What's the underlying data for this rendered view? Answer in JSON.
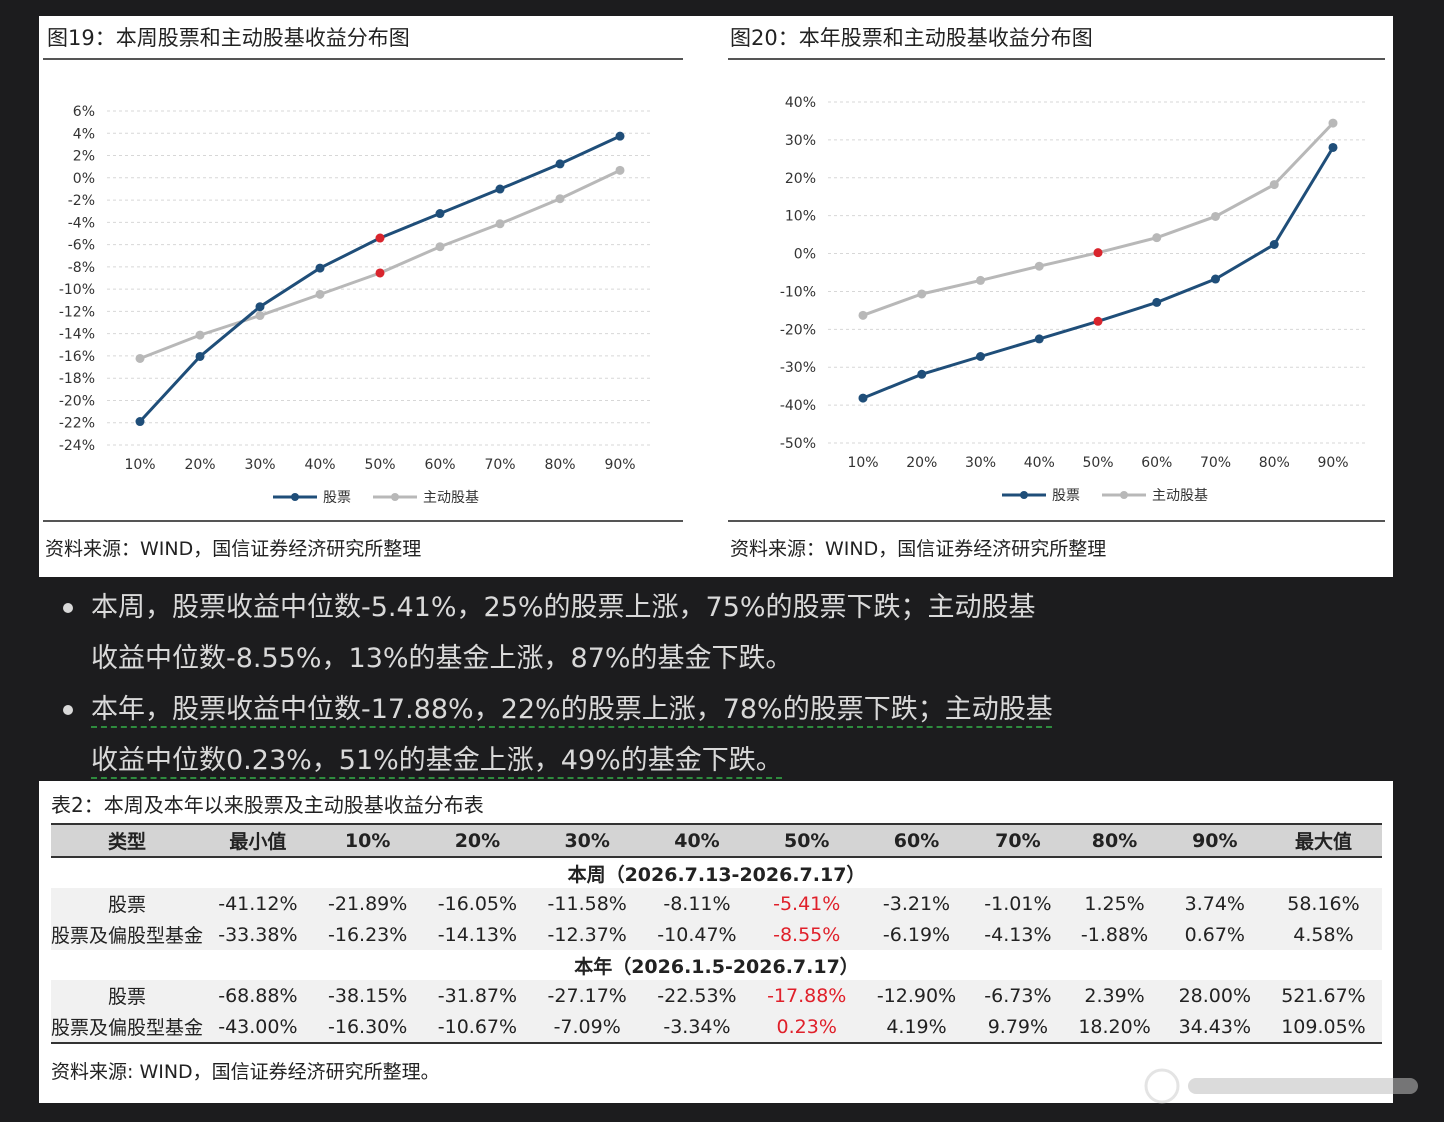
{
  "fig19": {
    "title": "图19：本周股票和主动股基收益分布图",
    "source": "资料来源：WIND，国信证券经济研究所整理"
  },
  "fig20": {
    "title": "图20：本年股票和主动股基收益分布图",
    "source": "资料来源：WIND，国信证券经济研究所整理"
  },
  "chart_data": [
    {
      "type": "line",
      "title": "图19：本周股票和主动股基收益分布图",
      "categories": [
        "10%",
        "20%",
        "30%",
        "40%",
        "50%",
        "60%",
        "70%",
        "80%",
        "90%"
      ],
      "yticks": [
        "6%",
        "4%",
        "2%",
        "0%",
        "-2%",
        "-4%",
        "-6%",
        "-8%",
        "-10%",
        "-12%",
        "-14%",
        "-16%",
        "-18%",
        "-20%",
        "-22%",
        "-24%"
      ],
      "ylim": [
        -24,
        6
      ],
      "grid": true,
      "legend": "bottom",
      "highlight_index": 4,
      "series": [
        {
          "name": "股票",
          "color": "#1f4e79",
          "values": [
            -21.89,
            -16.05,
            -11.58,
            -8.11,
            -5.41,
            -3.21,
            -1.01,
            1.25,
            3.74
          ]
        },
        {
          "name": "主动股基",
          "color": "#b8b8b8",
          "values": [
            -16.23,
            -14.13,
            -12.37,
            -10.47,
            -8.55,
            -6.19,
            -4.13,
            -1.88,
            0.67
          ]
        }
      ]
    },
    {
      "type": "line",
      "title": "图20：本年股票和主动股基收益分布图",
      "categories": [
        "10%",
        "20%",
        "30%",
        "40%",
        "50%",
        "60%",
        "70%",
        "80%",
        "90%"
      ],
      "yticks": [
        "40%",
        "30%",
        "20%",
        "10%",
        "0%",
        "-10%",
        "-20%",
        "-30%",
        "-40%",
        "-50%"
      ],
      "ylim": [
        -50,
        40
      ],
      "grid": true,
      "legend": "bottom",
      "highlight_index": 4,
      "series": [
        {
          "name": "股票",
          "color": "#1f4e79",
          "values": [
            -38.15,
            -31.87,
            -27.17,
            -22.53,
            -17.88,
            -12.9,
            -6.73,
            2.39,
            28.0
          ]
        },
        {
          "name": "主动股基",
          "color": "#b8b8b8",
          "values": [
            -16.3,
            -10.67,
            -7.09,
            -3.34,
            0.23,
            4.19,
            9.79,
            18.2,
            34.43
          ]
        }
      ]
    }
  ],
  "highlight_color": "#d9252d",
  "bullets": [
    {
      "line1": "本周，股票收益中位数-5.41%，25%的股票上涨，75%的股票下跌；主动股基",
      "line2": "收益中位数-8.55%，13%的基金上涨，87%的基金下跌。"
    },
    {
      "line1": "本年，股票收益中位数-17.88%，22%的股票上涨，78%的股票下跌；主动股基",
      "line2": "收益中位数0.23%，51%的基金上涨，49%的基金下跌。"
    }
  ],
  "table": {
    "title": "表2：本周及本年以来股票及主动股基收益分布表",
    "headers": [
      "类型",
      "最小值",
      "10%",
      "20%",
      "30%",
      "40%",
      "50%",
      "60%",
      "70%",
      "80%",
      "90%",
      "最大值"
    ],
    "sections": [
      {
        "label": "本周（2026.7.13-2026.7.17）",
        "rows": [
          [
            "股票",
            "-41.12%",
            "-21.89%",
            "-16.05%",
            "-11.58%",
            "-8.11%",
            "-5.41%",
            "-3.21%",
            "-1.01%",
            "1.25%",
            "3.74%",
            "58.16%"
          ],
          [
            "股票及偏股型基金",
            "-33.38%",
            "-16.23%",
            "-14.13%",
            "-12.37%",
            "-10.47%",
            "-8.55%",
            "-6.19%",
            "-4.13%",
            "-1.88%",
            "0.67%",
            "4.58%"
          ]
        ]
      },
      {
        "label": "本年（2026.1.5-2026.7.17）",
        "rows": [
          [
            "股票",
            "-68.88%",
            "-38.15%",
            "-31.87%",
            "-27.17%",
            "-22.53%",
            "-17.88%",
            "-12.90%",
            "-6.73%",
            "2.39%",
            "28.00%",
            "521.67%"
          ],
          [
            "股票及偏股型基金",
            "-43.00%",
            "-16.30%",
            "-10.67%",
            "-7.09%",
            "-3.34%",
            "0.23%",
            "4.19%",
            "9.79%",
            "18.20%",
            "34.43%",
            "109.05%"
          ]
        ]
      }
    ],
    "source": "资料来源: WIND，国信证券经济研究所整理。"
  }
}
